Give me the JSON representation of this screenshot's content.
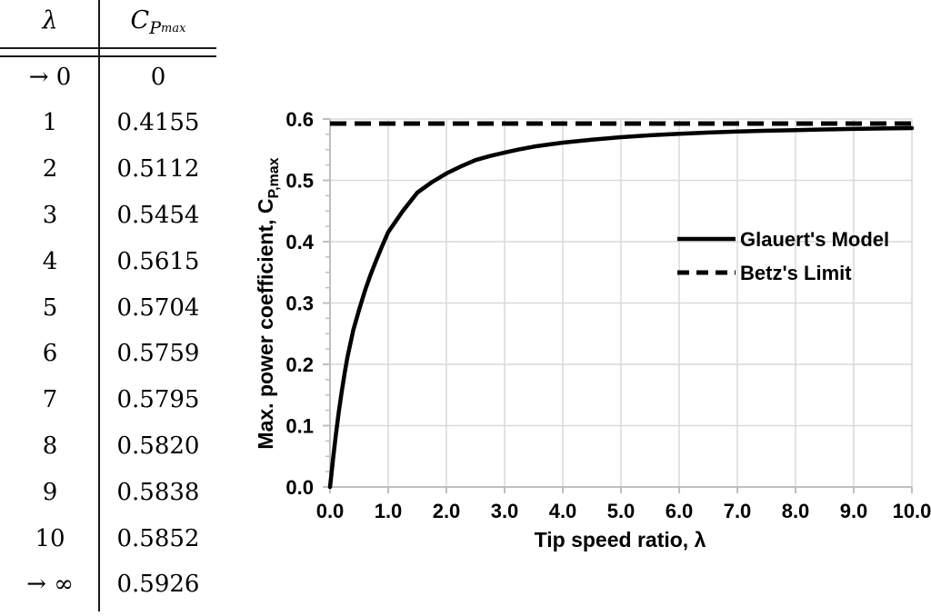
{
  "table": {
    "header": {
      "col1": "λ",
      "col2_main": "C",
      "col2_sub": "P",
      "col2_subsub": "max"
    },
    "rows": [
      {
        "lambda": "→ 0",
        "cp": "0"
      },
      {
        "lambda": "1",
        "cp": "0.4155"
      },
      {
        "lambda": "2",
        "cp": "0.5112"
      },
      {
        "lambda": "3",
        "cp": "0.5454"
      },
      {
        "lambda": "4",
        "cp": "0.5615"
      },
      {
        "lambda": "5",
        "cp": "0.5704"
      },
      {
        "lambda": "6",
        "cp": "0.5759"
      },
      {
        "lambda": "7",
        "cp": "0.5795"
      },
      {
        "lambda": "8",
        "cp": "0.5820"
      },
      {
        "lambda": "9",
        "cp": "0.5838"
      },
      {
        "lambda": "10",
        "cp": "0.5852"
      },
      {
        "lambda": "→ ∞",
        "cp": "0.5926"
      }
    ]
  },
  "chart_data": {
    "type": "line",
    "title": "",
    "xlabel": "Tip speed ratio, λ",
    "ylabel_main": "Max. power coefficient, C",
    "ylabel_sub": "P,max",
    "xlim": [
      0,
      10
    ],
    "ylim": [
      0,
      0.6
    ],
    "x_ticks": [
      0,
      1,
      2,
      3,
      4,
      5,
      6,
      7,
      8,
      9,
      10
    ],
    "x_tick_labels": [
      "0.0",
      "1.0",
      "2.0",
      "3.0",
      "4.0",
      "5.0",
      "6.0",
      "7.0",
      "8.0",
      "9.0",
      "10.0"
    ],
    "y_ticks": [
      0,
      0.1,
      0.2,
      0.3,
      0.4,
      0.5,
      0.6
    ],
    "y_tick_labels": [
      "0.0",
      "0.1",
      "0.2",
      "0.3",
      "0.4",
      "0.5",
      "0.6"
    ],
    "y_minor_step": 0.025,
    "grid": true,
    "legend_position": "inside-right",
    "series": [
      {
        "name": "Glauert's Model",
        "style": "solid",
        "points": [
          [
            0,
            0
          ],
          [
            0.05,
            0.044
          ],
          [
            0.1,
            0.085
          ],
          [
            0.15,
            0.122
          ],
          [
            0.2,
            0.155
          ],
          [
            0.25,
            0.185
          ],
          [
            0.3,
            0.212
          ],
          [
            0.4,
            0.256
          ],
          [
            0.5,
            0.289
          ],
          [
            0.6,
            0.32
          ],
          [
            0.7,
            0.347
          ],
          [
            0.8,
            0.371
          ],
          [
            0.9,
            0.394
          ],
          [
            1,
            0.4155
          ],
          [
            1.25,
            0.45
          ],
          [
            1.5,
            0.48
          ],
          [
            1.75,
            0.497
          ],
          [
            2,
            0.5112
          ],
          [
            2.25,
            0.5228
          ],
          [
            2.5,
            0.533
          ],
          [
            2.75,
            0.5397
          ],
          [
            3,
            0.5454
          ],
          [
            3.25,
            0.5505
          ],
          [
            3.5,
            0.5549
          ],
          [
            3.75,
            0.5584
          ],
          [
            4,
            0.5615
          ],
          [
            4.5,
            0.5663
          ],
          [
            5,
            0.5704
          ],
          [
            5.5,
            0.5735
          ],
          [
            6,
            0.5759
          ],
          [
            6.5,
            0.5779
          ],
          [
            7,
            0.5795
          ],
          [
            7.5,
            0.5809
          ],
          [
            8,
            0.582
          ],
          [
            8.5,
            0.583
          ],
          [
            9,
            0.5838
          ],
          [
            9.5,
            0.5846
          ],
          [
            10,
            0.5852
          ]
        ]
      },
      {
        "name": "Betz's Limit",
        "style": "dashed",
        "value": 0.5926
      }
    ],
    "colors": {
      "line": "#000000",
      "grid": "#d9d9d9",
      "axis": "#bfbfbf",
      "text": "#000000"
    }
  }
}
